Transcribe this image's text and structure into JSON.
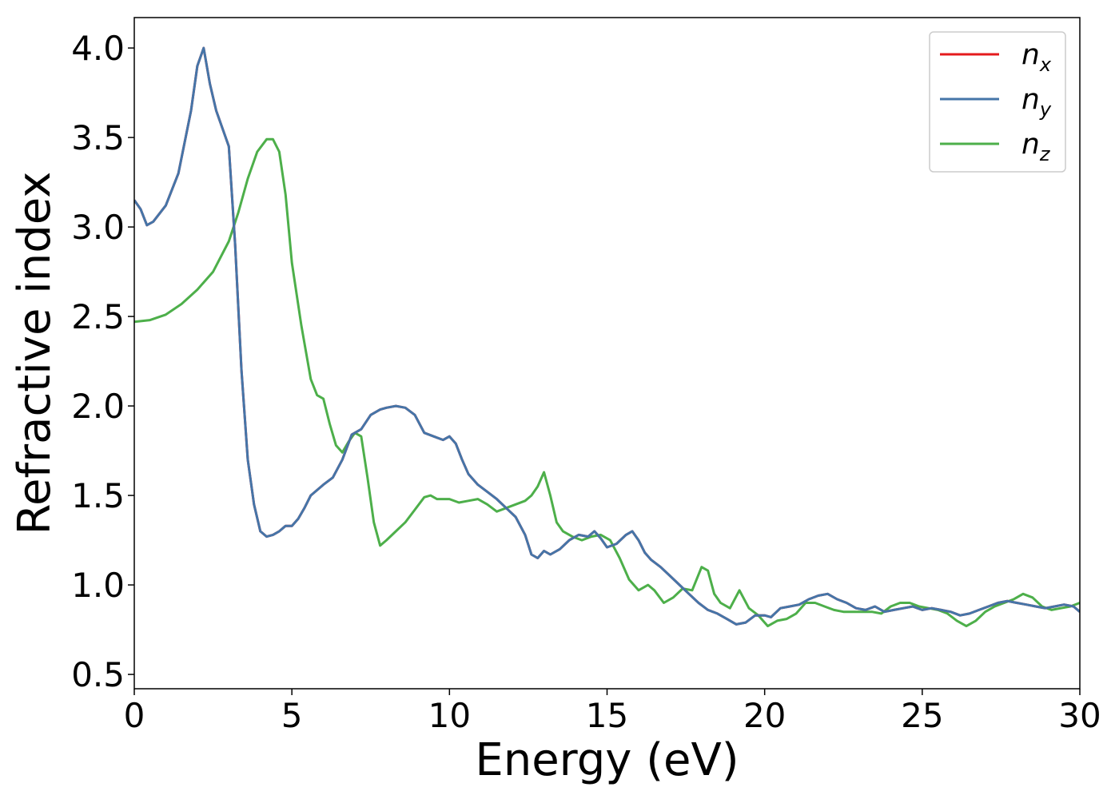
{
  "chart_data": {
    "type": "line",
    "xlabel": "Energy (eV)",
    "ylabel": "Refractive index",
    "xlim": [
      0,
      30
    ],
    "ylim": [
      0.42,
      4.17
    ],
    "xticks": [
      0,
      5,
      10,
      15,
      20,
      25,
      30
    ],
    "xtick_labels": [
      "0",
      "5",
      "10",
      "15",
      "20",
      "25",
      "30"
    ],
    "yticks": [
      0.5,
      1.0,
      1.5,
      2.0,
      2.5,
      3.0,
      3.5,
      4.0
    ],
    "ytick_labels": [
      "0.5",
      "1.0",
      "1.5",
      "2.0",
      "2.5",
      "3.0",
      "3.5",
      "4.0"
    ],
    "grid": false,
    "legend": {
      "position": "top-right"
    },
    "series": [
      {
        "name_base": "n",
        "name_sub": "x",
        "color": "#e41a1c",
        "style": "solid",
        "x": [
          0,
          0.2,
          0.4,
          0.6,
          1.0,
          1.4,
          1.8,
          2.0,
          2.2,
          2.4,
          2.6,
          2.8,
          3.0,
          3.2,
          3.4,
          3.6,
          3.8,
          4.0,
          4.2,
          4.4,
          4.6,
          4.8,
          5.0,
          5.2,
          5.4,
          5.6,
          5.8,
          6.0,
          6.3,
          6.6,
          6.9,
          7.2,
          7.5,
          7.8,
          8.0,
          8.3,
          8.6,
          8.9,
          9.2,
          9.5,
          9.8,
          10.0,
          10.2,
          10.4,
          10.6,
          10.9,
          11.2,
          11.5,
          11.8,
          12.1,
          12.4,
          12.6,
          12.8,
          13.0,
          13.2,
          13.5,
          13.8,
          14.1,
          14.4,
          14.6,
          14.8,
          15.0,
          15.3,
          15.6,
          15.8,
          16.0,
          16.2,
          16.4,
          16.7,
          17.0,
          17.3,
          17.6,
          17.9,
          18.2,
          18.5,
          18.8,
          19.1,
          19.4,
          19.7,
          20.0,
          20.2,
          20.5,
          20.8,
          21.1,
          21.4,
          21.7,
          22.0,
          22.3,
          22.6,
          22.9,
          23.2,
          23.5,
          23.8,
          24.1,
          24.4,
          24.7,
          25.0,
          25.3,
          25.6,
          25.9,
          26.2,
          26.5,
          26.8,
          27.1,
          27.4,
          27.7,
          28.0,
          28.3,
          28.6,
          28.9,
          29.2,
          29.5,
          29.8,
          30.0
        ],
        "values": [
          3.15,
          3.1,
          3.01,
          3.03,
          3.12,
          3.3,
          3.65,
          3.9,
          4.0,
          3.8,
          3.65,
          3.55,
          3.45,
          2.9,
          2.2,
          1.7,
          1.45,
          1.3,
          1.27,
          1.28,
          1.3,
          1.33,
          1.33,
          1.37,
          1.43,
          1.5,
          1.53,
          1.56,
          1.6,
          1.7,
          1.84,
          1.87,
          1.95,
          1.98,
          1.99,
          2.0,
          1.99,
          1.95,
          1.85,
          1.83,
          1.81,
          1.83,
          1.79,
          1.7,
          1.62,
          1.56,
          1.52,
          1.48,
          1.43,
          1.38,
          1.28,
          1.17,
          1.15,
          1.19,
          1.17,
          1.2,
          1.25,
          1.28,
          1.27,
          1.3,
          1.26,
          1.21,
          1.23,
          1.28,
          1.3,
          1.25,
          1.18,
          1.14,
          1.1,
          1.05,
          1.0,
          0.95,
          0.9,
          0.86,
          0.84,
          0.81,
          0.78,
          0.79,
          0.83,
          0.83,
          0.82,
          0.87,
          0.88,
          0.89,
          0.92,
          0.94,
          0.95,
          0.92,
          0.9,
          0.87,
          0.86,
          0.88,
          0.85,
          0.86,
          0.87,
          0.88,
          0.86,
          0.87,
          0.86,
          0.85,
          0.83,
          0.84,
          0.86,
          0.88,
          0.9,
          0.91,
          0.9,
          0.89,
          0.88,
          0.87,
          0.88,
          0.89,
          0.88,
          0.85
        ]
      },
      {
        "name_base": "n",
        "name_sub": "y",
        "color": "#4575a8",
        "style": "solid",
        "x": [
          0,
          0.2,
          0.4,
          0.6,
          1.0,
          1.4,
          1.8,
          2.0,
          2.2,
          2.4,
          2.6,
          2.8,
          3.0,
          3.2,
          3.4,
          3.6,
          3.8,
          4.0,
          4.2,
          4.4,
          4.6,
          4.8,
          5.0,
          5.2,
          5.4,
          5.6,
          5.8,
          6.0,
          6.3,
          6.6,
          6.9,
          7.2,
          7.5,
          7.8,
          8.0,
          8.3,
          8.6,
          8.9,
          9.2,
          9.5,
          9.8,
          10.0,
          10.2,
          10.4,
          10.6,
          10.9,
          11.2,
          11.5,
          11.8,
          12.1,
          12.4,
          12.6,
          12.8,
          13.0,
          13.2,
          13.5,
          13.8,
          14.1,
          14.4,
          14.6,
          14.8,
          15.0,
          15.3,
          15.6,
          15.8,
          16.0,
          16.2,
          16.4,
          16.7,
          17.0,
          17.3,
          17.6,
          17.9,
          18.2,
          18.5,
          18.8,
          19.1,
          19.4,
          19.7,
          20.0,
          20.2,
          20.5,
          20.8,
          21.1,
          21.4,
          21.7,
          22.0,
          22.3,
          22.6,
          22.9,
          23.2,
          23.5,
          23.8,
          24.1,
          24.4,
          24.7,
          25.0,
          25.3,
          25.6,
          25.9,
          26.2,
          26.5,
          26.8,
          27.1,
          27.4,
          27.7,
          28.0,
          28.3,
          28.6,
          28.9,
          29.2,
          29.5,
          29.8,
          30.0
        ],
        "values": [
          3.15,
          3.1,
          3.01,
          3.03,
          3.12,
          3.3,
          3.65,
          3.9,
          4.0,
          3.8,
          3.65,
          3.55,
          3.45,
          2.9,
          2.2,
          1.7,
          1.45,
          1.3,
          1.27,
          1.28,
          1.3,
          1.33,
          1.33,
          1.37,
          1.43,
          1.5,
          1.53,
          1.56,
          1.6,
          1.7,
          1.84,
          1.87,
          1.95,
          1.98,
          1.99,
          2.0,
          1.99,
          1.95,
          1.85,
          1.83,
          1.81,
          1.83,
          1.79,
          1.7,
          1.62,
          1.56,
          1.52,
          1.48,
          1.43,
          1.38,
          1.28,
          1.17,
          1.15,
          1.19,
          1.17,
          1.2,
          1.25,
          1.28,
          1.27,
          1.3,
          1.26,
          1.21,
          1.23,
          1.28,
          1.3,
          1.25,
          1.18,
          1.14,
          1.1,
          1.05,
          1.0,
          0.95,
          0.9,
          0.86,
          0.84,
          0.81,
          0.78,
          0.79,
          0.83,
          0.83,
          0.82,
          0.87,
          0.88,
          0.89,
          0.92,
          0.94,
          0.95,
          0.92,
          0.9,
          0.87,
          0.86,
          0.88,
          0.85,
          0.86,
          0.87,
          0.88,
          0.86,
          0.87,
          0.86,
          0.85,
          0.83,
          0.84,
          0.86,
          0.88,
          0.9,
          0.91,
          0.9,
          0.89,
          0.88,
          0.87,
          0.88,
          0.89,
          0.88,
          0.85
        ]
      },
      {
        "name_base": "n",
        "name_sub": "z",
        "color": "#4daf4a",
        "style": "solid",
        "x": [
          0,
          0.5,
          1.0,
          1.5,
          2.0,
          2.5,
          3.0,
          3.3,
          3.6,
          3.9,
          4.2,
          4.4,
          4.6,
          4.8,
          5.0,
          5.3,
          5.6,
          5.8,
          6.0,
          6.2,
          6.4,
          6.6,
          6.8,
          7.0,
          7.2,
          7.4,
          7.6,
          7.8,
          8.0,
          8.3,
          8.6,
          8.9,
          9.2,
          9.4,
          9.6,
          9.8,
          10.0,
          10.3,
          10.6,
          10.9,
          11.2,
          11.5,
          11.8,
          12.1,
          12.4,
          12.6,
          12.8,
          13.0,
          13.2,
          13.4,
          13.6,
          13.9,
          14.2,
          14.5,
          14.8,
          15.1,
          15.4,
          15.7,
          16.0,
          16.3,
          16.5,
          16.8,
          17.1,
          17.4,
          17.7,
          18.0,
          18.2,
          18.4,
          18.6,
          18.9,
          19.2,
          19.5,
          19.8,
          20.1,
          20.4,
          20.7,
          21.0,
          21.3,
          21.6,
          21.9,
          22.2,
          22.5,
          22.8,
          23.1,
          23.4,
          23.7,
          24.0,
          24.3,
          24.6,
          24.9,
          25.2,
          25.5,
          25.8,
          26.1,
          26.4,
          26.7,
          27.0,
          27.3,
          27.6,
          27.9,
          28.2,
          28.5,
          28.8,
          29.1,
          29.4,
          29.7,
          30.0
        ],
        "values": [
          2.47,
          2.48,
          2.51,
          2.57,
          2.65,
          2.75,
          2.92,
          3.08,
          3.27,
          3.42,
          3.49,
          3.49,
          3.42,
          3.18,
          2.8,
          2.45,
          2.15,
          2.06,
          2.04,
          1.9,
          1.78,
          1.74,
          1.8,
          1.85,
          1.83,
          1.6,
          1.35,
          1.22,
          1.25,
          1.3,
          1.35,
          1.42,
          1.49,
          1.5,
          1.48,
          1.48,
          1.48,
          1.46,
          1.47,
          1.48,
          1.45,
          1.41,
          1.43,
          1.45,
          1.47,
          1.5,
          1.55,
          1.63,
          1.5,
          1.35,
          1.3,
          1.27,
          1.25,
          1.27,
          1.28,
          1.25,
          1.15,
          1.03,
          0.97,
          1.0,
          0.97,
          0.9,
          0.93,
          0.98,
          0.97,
          1.1,
          1.08,
          0.95,
          0.9,
          0.87,
          0.97,
          0.87,
          0.83,
          0.77,
          0.8,
          0.81,
          0.84,
          0.9,
          0.9,
          0.88,
          0.86,
          0.85,
          0.85,
          0.85,
          0.85,
          0.84,
          0.88,
          0.9,
          0.9,
          0.88,
          0.87,
          0.86,
          0.84,
          0.8,
          0.77,
          0.8,
          0.85,
          0.88,
          0.9,
          0.92,
          0.95,
          0.93,
          0.88,
          0.86,
          0.87,
          0.88,
          0.9
        ]
      }
    ]
  }
}
